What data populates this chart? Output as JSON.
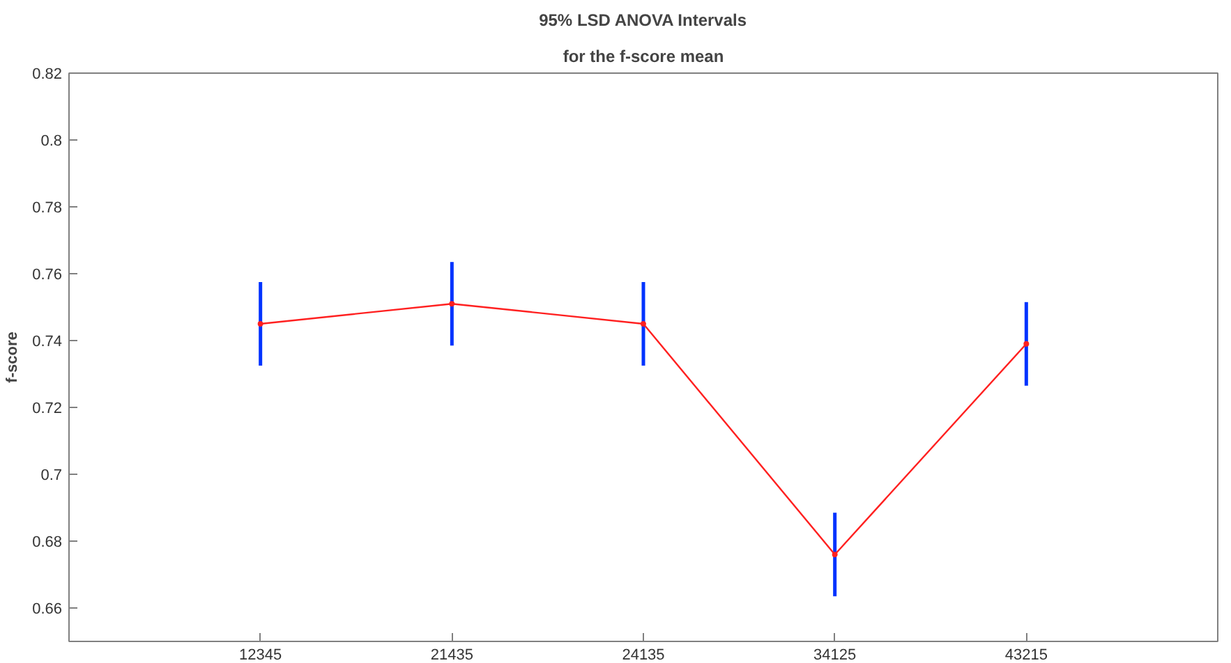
{
  "chart_data": {
    "type": "line",
    "title": "95% LSD ANOVA Intervals",
    "subtitle": "for the f-score mean",
    "ylabel": "f-score",
    "categories": [
      "12345",
      "21435",
      "24135",
      "34125",
      "43215"
    ],
    "series": [
      {
        "color": "#ff2020",
        "values": [
          0.745,
          0.751,
          0.745,
          0.676,
          0.739
        ],
        "errors": [
          0.0125,
          0.0125,
          0.0125,
          0.0125,
          0.0125
        ]
      }
    ],
    "ylim": [
      0.65,
      0.82
    ],
    "yticks": [
      0.66,
      0.68,
      0.7,
      0.72,
      0.74,
      0.76,
      0.78,
      0.8,
      0.82
    ],
    "grid": false,
    "marker": "circle",
    "line_style": "solid"
  }
}
